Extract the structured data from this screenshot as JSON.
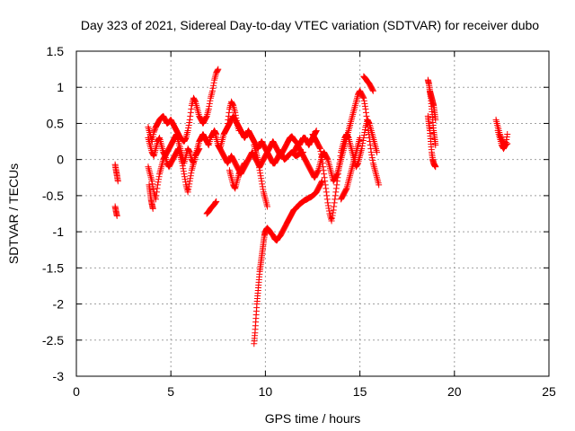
{
  "chart_data": {
    "type": "scatter",
    "title": "Day 323 of 2021, Sidereal Day-to-day VTEC variation (SDTVAR) for receiver dubo",
    "xlabel": "GPS time / hours",
    "ylabel": "SDTVAR / TECUs",
    "xlim": [
      0,
      25
    ],
    "ylim": [
      -3,
      1.5
    ],
    "xticks": [
      0,
      5,
      10,
      15,
      20,
      25
    ],
    "xtick_labels": [
      "0",
      "5",
      "10",
      "15",
      "20",
      "25"
    ],
    "yticks": [
      1.5,
      1,
      0.5,
      0,
      -0.5,
      -1,
      -1.5,
      -2,
      -2.5,
      -3
    ],
    "ytick_labels": [
      "1.5",
      "1",
      "0.5",
      "0",
      "-0.5",
      "-1",
      "-1.5",
      "-2",
      "-2.5",
      "-3"
    ],
    "grid": true,
    "marker": "+",
    "color": "#ff0000",
    "series": [
      {
        "name": "SDTVAR",
        "segments": [
          {
            "x": [
              2.05,
              2.1,
              2.15,
              2.2
            ],
            "y": [
              -0.07,
              -0.15,
              -0.22,
              -0.3
            ]
          },
          {
            "x": [
              2.05,
              2.1,
              2.15
            ],
            "y": [
              -0.65,
              -0.72,
              -0.78
            ]
          },
          {
            "x": [
              3.8,
              3.9,
              4.0,
              4.1,
              4.2,
              4.3,
              4.4,
              4.5,
              4.6,
              4.7,
              4.8,
              4.9,
              5.0,
              5.1,
              5.2,
              5.3,
              5.4,
              5.5,
              5.6,
              5.7,
              5.8,
              5.9,
              6.0,
              6.1,
              6.2,
              6.3,
              6.4,
              6.5,
              6.6,
              6.7,
              6.8,
              6.9,
              7.0,
              7.1,
              7.2,
              7.3,
              7.4,
              7.5
            ],
            "y": [
              0.45,
              0.35,
              0.25,
              0.38,
              0.45,
              0.5,
              0.55,
              0.58,
              0.6,
              0.55,
              0.5,
              0.52,
              0.55,
              0.5,
              0.45,
              0.4,
              0.35,
              0.3,
              0.28,
              0.25,
              0.3,
              0.4,
              0.55,
              0.75,
              0.85,
              0.8,
              0.7,
              0.6,
              0.55,
              0.5,
              0.55,
              0.6,
              0.7,
              0.85,
              0.95,
              1.1,
              1.2,
              1.25
            ]
          },
          {
            "x": [
              3.8,
              3.9,
              4.0,
              4.1,
              4.2,
              4.3,
              4.4,
              4.5,
              4.6,
              4.7,
              4.8,
              4.9,
              5.0,
              5.1,
              5.2,
              5.3,
              5.4,
              5.5,
              5.6,
              5.7,
              5.8,
              5.9,
              6.0,
              6.1,
              6.2,
              6.3,
              6.4,
              6.5,
              6.6,
              6.7,
              6.8,
              6.9,
              7.0,
              7.1,
              7.2,
              7.3,
              7.4
            ],
            "y": [
              0.3,
              0.2,
              0.1,
              0.05,
              0.15,
              0.25,
              0.3,
              0.2,
              0.1,
              0.05,
              0.1,
              0.15,
              0.2,
              0.25,
              0.3,
              0.35,
              0.25,
              0.15,
              0.05,
              -0.05,
              0.05,
              0.15,
              0.1,
              0.0,
              -0.05,
              0.05,
              0.15,
              0.25,
              0.3,
              0.35,
              0.3,
              0.25,
              0.2,
              0.3,
              0.35,
              0.4,
              0.35
            ]
          },
          {
            "x": [
              3.8,
              3.9,
              4.0,
              4.1,
              4.2,
              4.3,
              4.4,
              4.5,
              4.6,
              4.7,
              4.8,
              4.9,
              5.0,
              5.1,
              5.2,
              5.3,
              5.4,
              5.5,
              5.6,
              5.7,
              5.8,
              5.9,
              6.0,
              6.1,
              6.2,
              6.3,
              6.4,
              6.5
            ],
            "y": [
              -0.1,
              -0.2,
              -0.3,
              -0.45,
              -0.55,
              -0.35,
              -0.2,
              -0.1,
              0.0,
              0.05,
              -0.05,
              -0.1,
              -0.05,
              0.0,
              0.05,
              0.1,
              0.15,
              0.05,
              -0.05,
              -0.2,
              -0.35,
              -0.45,
              -0.3,
              -0.15,
              -0.05,
              0.05,
              0.1,
              0.15
            ]
          },
          {
            "x": [
              3.85,
              3.9,
              3.95,
              4.0,
              4.05
            ],
            "y": [
              -0.35,
              -0.45,
              -0.55,
              -0.62,
              -0.68
            ]
          },
          {
            "x": [
              6.9,
              7.0,
              7.1,
              7.2,
              7.3,
              7.4
            ],
            "y": [
              -0.75,
              -0.72,
              -0.68,
              -0.65,
              -0.62,
              -0.58
            ]
          },
          {
            "x": [
              7.3,
              7.4,
              7.5,
              7.6,
              7.7,
              7.8,
              7.9,
              8.0,
              8.1,
              8.2,
              8.3,
              8.4,
              8.5,
              8.6,
              8.7,
              8.8,
              8.9,
              9.0,
              9.1,
              9.2,
              9.3,
              9.4,
              9.5,
              9.6,
              9.7,
              9.8,
              9.9,
              10.0,
              10.1,
              10.2,
              10.3,
              10.4,
              10.5,
              10.6,
              10.7,
              10.8,
              10.9,
              11.0,
              11.1,
              11.2,
              11.3,
              11.4,
              11.5,
              11.6,
              11.7,
              11.8,
              11.9,
              12.0,
              12.1,
              12.2,
              12.3,
              12.4,
              12.5,
              12.6,
              12.7
            ],
            "y": [
              0.4,
              0.3,
              0.2,
              0.15,
              0.25,
              0.35,
              0.4,
              0.45,
              0.5,
              0.55,
              0.6,
              0.55,
              0.5,
              0.45,
              0.4,
              0.35,
              0.3,
              0.35,
              0.4,
              0.35,
              0.3,
              0.25,
              0.2,
              0.15,
              0.2,
              0.25,
              0.2,
              0.15,
              0.1,
              0.15,
              0.2,
              0.25,
              0.2,
              0.15,
              0.1,
              0.05,
              0.1,
              0.15,
              0.2,
              0.25,
              0.3,
              0.32,
              0.28,
              0.25,
              0.22,
              0.2,
              0.25,
              0.3,
              0.3,
              0.25,
              0.2,
              0.25,
              0.3,
              0.35,
              0.4
            ]
          },
          {
            "x": [
              7.5,
              7.6,
              7.7,
              7.8,
              7.9,
              8.0,
              8.1,
              8.2,
              8.3,
              8.4,
              8.5,
              8.6,
              8.7,
              8.8,
              8.9,
              9.0,
              9.1,
              9.2,
              9.3,
              9.4,
              9.5,
              9.6,
              9.7,
              9.8,
              9.9,
              10.0,
              10.1,
              10.2,
              10.3,
              10.4,
              10.5,
              10.6,
              10.7,
              10.8,
              10.9,
              11.0,
              11.1,
              11.2,
              11.3,
              11.4,
              11.5,
              11.6,
              11.7,
              11.8,
              11.9,
              12.0
            ],
            "y": [
              0.2,
              0.15,
              0.1,
              0.05,
              0.0,
              -0.05,
              0.0,
              0.05,
              0.0,
              -0.05,
              -0.1,
              -0.15,
              -0.2,
              -0.15,
              -0.1,
              -0.05,
              0.0,
              0.05,
              0.1,
              0.05,
              0.0,
              -0.05,
              -0.1,
              -0.05,
              0.0,
              0.05,
              0.1,
              0.05,
              0.0,
              -0.05,
              -0.05,
              0.0,
              0.05,
              0.1,
              0.05,
              0.0,
              0.02,
              0.05,
              0.08,
              0.1,
              0.08,
              0.05,
              0.06,
              0.08,
              0.1,
              0.1
            ]
          },
          {
            "x": [
              8.0,
              8.1,
              8.2,
              8.3,
              8.4,
              8.5,
              8.6
            ],
            "y": [
              0.5,
              0.7,
              0.8,
              0.75,
              0.65,
              0.5,
              0.4
            ]
          },
          {
            "x": [
              8.1,
              8.2,
              8.3,
              8.4,
              8.5,
              8.6,
              8.7,
              8.8,
              8.9
            ],
            "y": [
              -0.15,
              -0.25,
              -0.35,
              -0.4,
              -0.3,
              -0.2,
              -0.15,
              -0.1,
              -0.05
            ]
          },
          {
            "x": [
              9.4,
              9.5,
              9.6,
              9.7,
              9.8,
              9.9,
              10.0,
              10.1
            ],
            "y": [
              0.2,
              0.1,
              0.0,
              -0.15,
              -0.3,
              -0.45,
              -0.55,
              -0.65
            ]
          },
          {
            "x": [
              9.4,
              9.45,
              9.5,
              9.55,
              9.6,
              9.65,
              9.7,
              9.75,
              9.8,
              9.85,
              9.9,
              9.95,
              10.0,
              10.05,
              10.1
            ],
            "y": [
              -2.55,
              -2.4,
              -2.2,
              -2.0,
              -1.85,
              -1.7,
              -1.55,
              -1.45,
              -1.35,
              -1.25,
              -1.15,
              -1.05,
              -1.0,
              -0.97,
              -0.95
            ]
          },
          {
            "x": [
              10.1,
              10.2,
              10.3,
              10.4,
              10.5,
              10.6,
              10.7,
              10.8,
              10.9,
              11.0,
              11.1,
              11.2,
              11.3,
              11.4,
              11.5,
              11.6,
              11.7,
              11.8,
              11.9,
              12.0,
              12.1,
              12.2,
              12.3,
              12.4,
              12.5,
              12.6,
              12.7,
              12.8,
              12.9,
              13.0
            ],
            "y": [
              -0.95,
              -0.98,
              -1.02,
              -1.05,
              -1.1,
              -1.12,
              -1.08,
              -1.05,
              -1.0,
              -0.95,
              -0.9,
              -0.85,
              -0.8,
              -0.75,
              -0.7,
              -0.68,
              -0.65,
              -0.62,
              -0.6,
              -0.58,
              -0.56,
              -0.55,
              -0.53,
              -0.52,
              -0.5,
              -0.48,
              -0.45,
              -0.4,
              -0.35,
              -0.3
            ]
          },
          {
            "x": [
              11.5,
              11.6,
              11.7,
              11.8,
              11.9,
              12.0,
              12.1,
              12.2,
              12.3,
              12.4,
              12.5,
              12.6,
              12.7,
              12.8,
              12.9,
              13.0,
              13.1,
              13.2,
              13.3,
              13.4,
              13.5,
              13.6,
              13.7,
              13.8,
              13.9,
              14.0,
              14.1,
              14.2,
              14.3,
              14.4,
              14.5,
              14.6,
              14.7,
              14.8,
              14.9,
              15.0,
              15.1,
              15.2,
              15.3,
              15.4,
              15.5,
              15.6,
              15.7,
              15.8,
              15.9,
              16.0
            ],
            "y": [
              0.1,
              0.15,
              0.2,
              0.15,
              0.1,
              0.05,
              0.0,
              -0.05,
              -0.1,
              -0.15,
              -0.2,
              -0.25,
              -0.2,
              -0.15,
              -0.05,
              0.05,
              0.1,
              0.05,
              0.0,
              -0.1,
              -0.2,
              -0.3,
              -0.25,
              -0.2,
              -0.1,
              0.0,
              0.1,
              0.2,
              0.3,
              0.4,
              0.5,
              0.6,
              0.7,
              0.8,
              0.9,
              0.95,
              0.9,
              0.85,
              0.7,
              0.5,
              0.3,
              0.1,
              -0.05,
              -0.15,
              -0.25,
              -0.35
            ]
          },
          {
            "x": [
              12.5,
              12.6,
              12.7,
              12.8,
              12.9,
              13.0,
              13.1,
              13.2,
              13.3,
              13.4,
              13.5,
              13.6,
              13.7,
              13.8,
              13.9,
              14.0,
              14.1,
              14.2,
              14.3,
              14.4,
              14.5,
              14.6,
              14.7,
              14.8,
              14.9,
              15.0,
              15.1,
              15.2,
              15.3,
              15.4,
              15.5,
              15.6,
              15.7,
              15.8,
              15.9
            ],
            "y": [
              0.35,
              0.3,
              0.25,
              0.2,
              0.15,
              0.0,
              -0.2,
              -0.4,
              -0.6,
              -0.75,
              -0.85,
              -0.7,
              -0.5,
              -0.3,
              -0.1,
              0.1,
              0.2,
              0.3,
              0.35,
              0.3,
              0.2,
              0.1,
              0.0,
              -0.1,
              -0.05,
              0.05,
              0.15,
              0.3,
              0.45,
              0.55,
              0.5,
              0.4,
              0.3,
              0.2,
              0.1
            ]
          },
          {
            "x": [
              14.0,
              14.1,
              14.2,
              14.3,
              14.4,
              14.5,
              14.6,
              14.7,
              14.8,
              14.9,
              15.0
            ],
            "y": [
              -0.55,
              -0.5,
              -0.45,
              -0.4,
              -0.3,
              -0.2,
              -0.1,
              0.0,
              0.1,
              0.2,
              0.3
            ]
          },
          {
            "x": [
              15.2,
              15.3,
              15.4,
              15.5,
              15.6,
              15.7
            ],
            "y": [
              1.15,
              1.12,
              1.08,
              1.05,
              1.0,
              0.95
            ]
          },
          {
            "x": [
              18.6,
              18.65,
              18.7,
              18.75,
              18.8,
              18.85,
              18.9,
              18.95,
              19.0
            ],
            "y": [
              1.1,
              1.05,
              0.95,
              0.85,
              0.7,
              0.55,
              0.4,
              0.3,
              0.2
            ]
          },
          {
            "x": [
              18.6,
              18.65,
              18.7,
              18.75,
              18.8,
              18.85,
              18.9,
              18.95,
              19.0
            ],
            "y": [
              0.6,
              0.5,
              0.4,
              0.25,
              0.1,
              0.0,
              -0.05,
              -0.08,
              -0.1
            ]
          },
          {
            "x": [
              18.7,
              18.75,
              18.8,
              18.85,
              18.9,
              18.95,
              19.0
            ],
            "y": [
              0.95,
              0.9,
              0.85,
              0.8,
              0.75,
              0.65,
              0.55
            ]
          },
          {
            "x": [
              22.2,
              22.3,
              22.4,
              22.5,
              22.6,
              22.7,
              22.8
            ],
            "y": [
              0.55,
              0.45,
              0.35,
              0.28,
              0.22,
              0.2,
              0.22
            ]
          },
          {
            "x": [
              22.3,
              22.4,
              22.5,
              22.6,
              22.7,
              22.8
            ],
            "y": [
              0.4,
              0.3,
              0.2,
              0.15,
              0.2,
              0.35
            ]
          }
        ]
      }
    ]
  }
}
